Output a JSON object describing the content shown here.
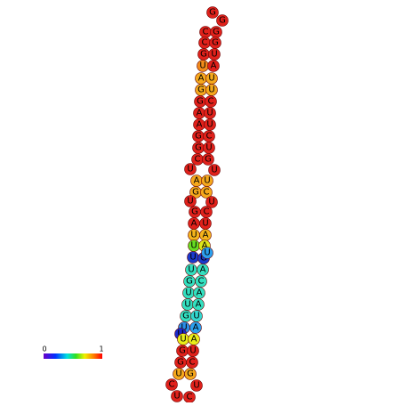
{
  "legend": {
    "min": "0",
    "max": "1"
  },
  "nodes": [
    {
      "label": "G",
      "color": "#e0211b"
    },
    {
      "label": "G",
      "color": "#e0211b"
    },
    {
      "label": "C",
      "color": "#e0211b"
    },
    {
      "label": "G",
      "color": "#e0211b"
    },
    {
      "label": "C",
      "color": "#e0211b"
    },
    {
      "label": "G",
      "color": "#e0211b"
    },
    {
      "label": "G",
      "color": "#e0211b"
    },
    {
      "label": "U",
      "color": "#e0211b"
    },
    {
      "label": "U",
      "color": "#f28a1a"
    },
    {
      "label": "A",
      "color": "#e0211b"
    },
    {
      "label": "A",
      "color": "#f5a81c"
    },
    {
      "label": "U",
      "color": "#f5a81c"
    },
    {
      "label": "G",
      "color": "#f5a81c"
    },
    {
      "label": "U",
      "color": "#f5a81c"
    },
    {
      "label": "G",
      "color": "#e0211b"
    },
    {
      "label": "C",
      "color": "#e0211b"
    },
    {
      "label": "A",
      "color": "#e0211b"
    },
    {
      "label": "U",
      "color": "#e0211b"
    },
    {
      "label": "A",
      "color": "#e0211b"
    },
    {
      "label": "U",
      "color": "#e0211b"
    },
    {
      "label": "G",
      "color": "#e0211b"
    },
    {
      "label": "C",
      "color": "#e0211b"
    },
    {
      "label": "G",
      "color": "#e0211b"
    },
    {
      "label": "U",
      "color": "#e0211b"
    },
    {
      "label": "C",
      "color": "#e0211b"
    },
    {
      "label": "G",
      "color": "#e0211b"
    },
    {
      "label": "U",
      "color": "#e0211b"
    },
    {
      "label": "U",
      "color": "#e0211b"
    },
    {
      "label": "A",
      "color": "#f5a81c"
    },
    {
      "label": "U",
      "color": "#f5a81c"
    },
    {
      "label": "G",
      "color": "#f5a81c"
    },
    {
      "label": "C",
      "color": "#f5a81c"
    },
    {
      "label": "U",
      "color": "#e0211b"
    },
    {
      "label": "U",
      "color": "#e0211b"
    },
    {
      "label": "G",
      "color": "#e0211b"
    },
    {
      "label": "C",
      "color": "#e0211b"
    },
    {
      "label": "A",
      "color": "#e0211b"
    },
    {
      "label": "U",
      "color": "#e0211b"
    },
    {
      "label": "U",
      "color": "#f5b41c"
    },
    {
      "label": "A",
      "color": "#f5b41c"
    },
    {
      "label": "U",
      "color": "#66dd22"
    },
    {
      "label": "A",
      "color": "#dde81a"
    },
    {
      "label": "U",
      "color": "#1a3acc"
    },
    {
      "label": "G",
      "color": "#1a3acc"
    },
    {
      "label": "U",
      "color": "#2aa0ee"
    },
    {
      "label": "U",
      "color": "#33e0c0"
    },
    {
      "label": "A",
      "color": "#33e0c0"
    },
    {
      "label": "G",
      "color": "#33e0c0"
    },
    {
      "label": "C",
      "color": "#33e0c0"
    },
    {
      "label": "U",
      "color": "#33e0c0"
    },
    {
      "label": "A",
      "color": "#33e0c0"
    },
    {
      "label": "U",
      "color": "#33e0c0"
    },
    {
      "label": "A",
      "color": "#33e0c0"
    },
    {
      "label": "G",
      "color": "#33e0c0"
    },
    {
      "label": "U",
      "color": "#33d8d0"
    },
    {
      "label": "U",
      "color": "#2a8ee8"
    },
    {
      "label": "A",
      "color": "#2aa0ee"
    },
    {
      "label": "U",
      "color": "#1a2acc"
    },
    {
      "label": "U",
      "color": "#e8ee1a"
    },
    {
      "label": "A",
      "color": "#e8ee1a"
    },
    {
      "label": "G",
      "color": "#e0211b"
    },
    {
      "label": "U",
      "color": "#e0211b"
    },
    {
      "label": "G",
      "color": "#e0211b"
    },
    {
      "label": "C",
      "color": "#e0211b"
    },
    {
      "label": "U",
      "color": "#f5a81c"
    },
    {
      "label": "G",
      "color": "#f5a81c"
    },
    {
      "label": "C",
      "color": "#e0211b"
    },
    {
      "label": "U",
      "color": "#e0211b"
    },
    {
      "label": "C",
      "color": "#e0211b"
    },
    {
      "label": "U",
      "color": "#e0211b"
    }
  ]
}
